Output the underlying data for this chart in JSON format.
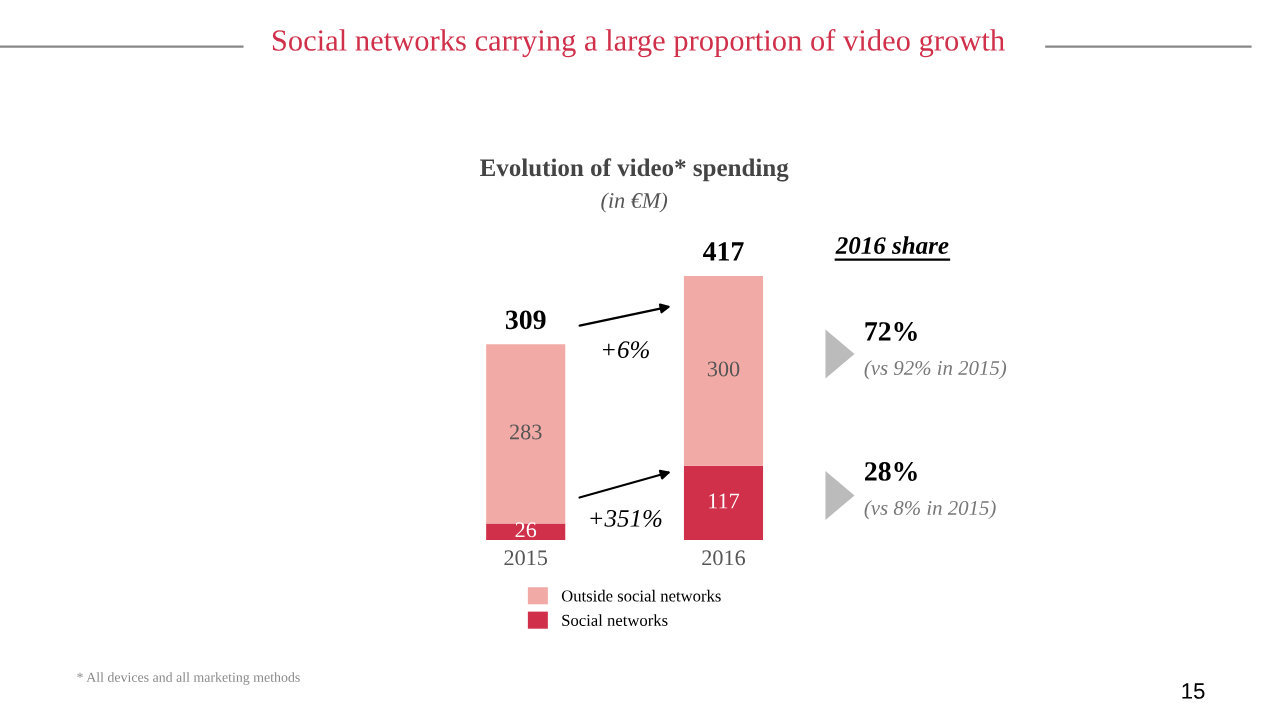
{
  "chart_data": {
    "type": "bar",
    "title": "Social networks carrying a large proportion of video growth",
    "subtitle": "Evolution of video* spending",
    "categories": [
      "2015",
      "2016"
    ],
    "stacked": true,
    "data_labels": true,
    "totals": [
      "309",
      "417"
    ],
    "legend": "bottom",
    "series": [
      {
        "name": "Social networks",
        "color": "#d0304a",
        "values": [
          26,
          117
        ]
      },
      {
        "name": "Outside social networks",
        "color": "#f2aaa6",
        "values": [
          283,
          300
        ]
      }
    ],
    "annotations": [
      "(in €M)",
      "+6%",
      "+351%",
      "2016 share",
      "72%",
      "(vs 92% in 2015)",
      "28%",
      "(vs 8% in 2015)",
      "* All devices and all marketing methods",
      "15"
    ]
  }
}
